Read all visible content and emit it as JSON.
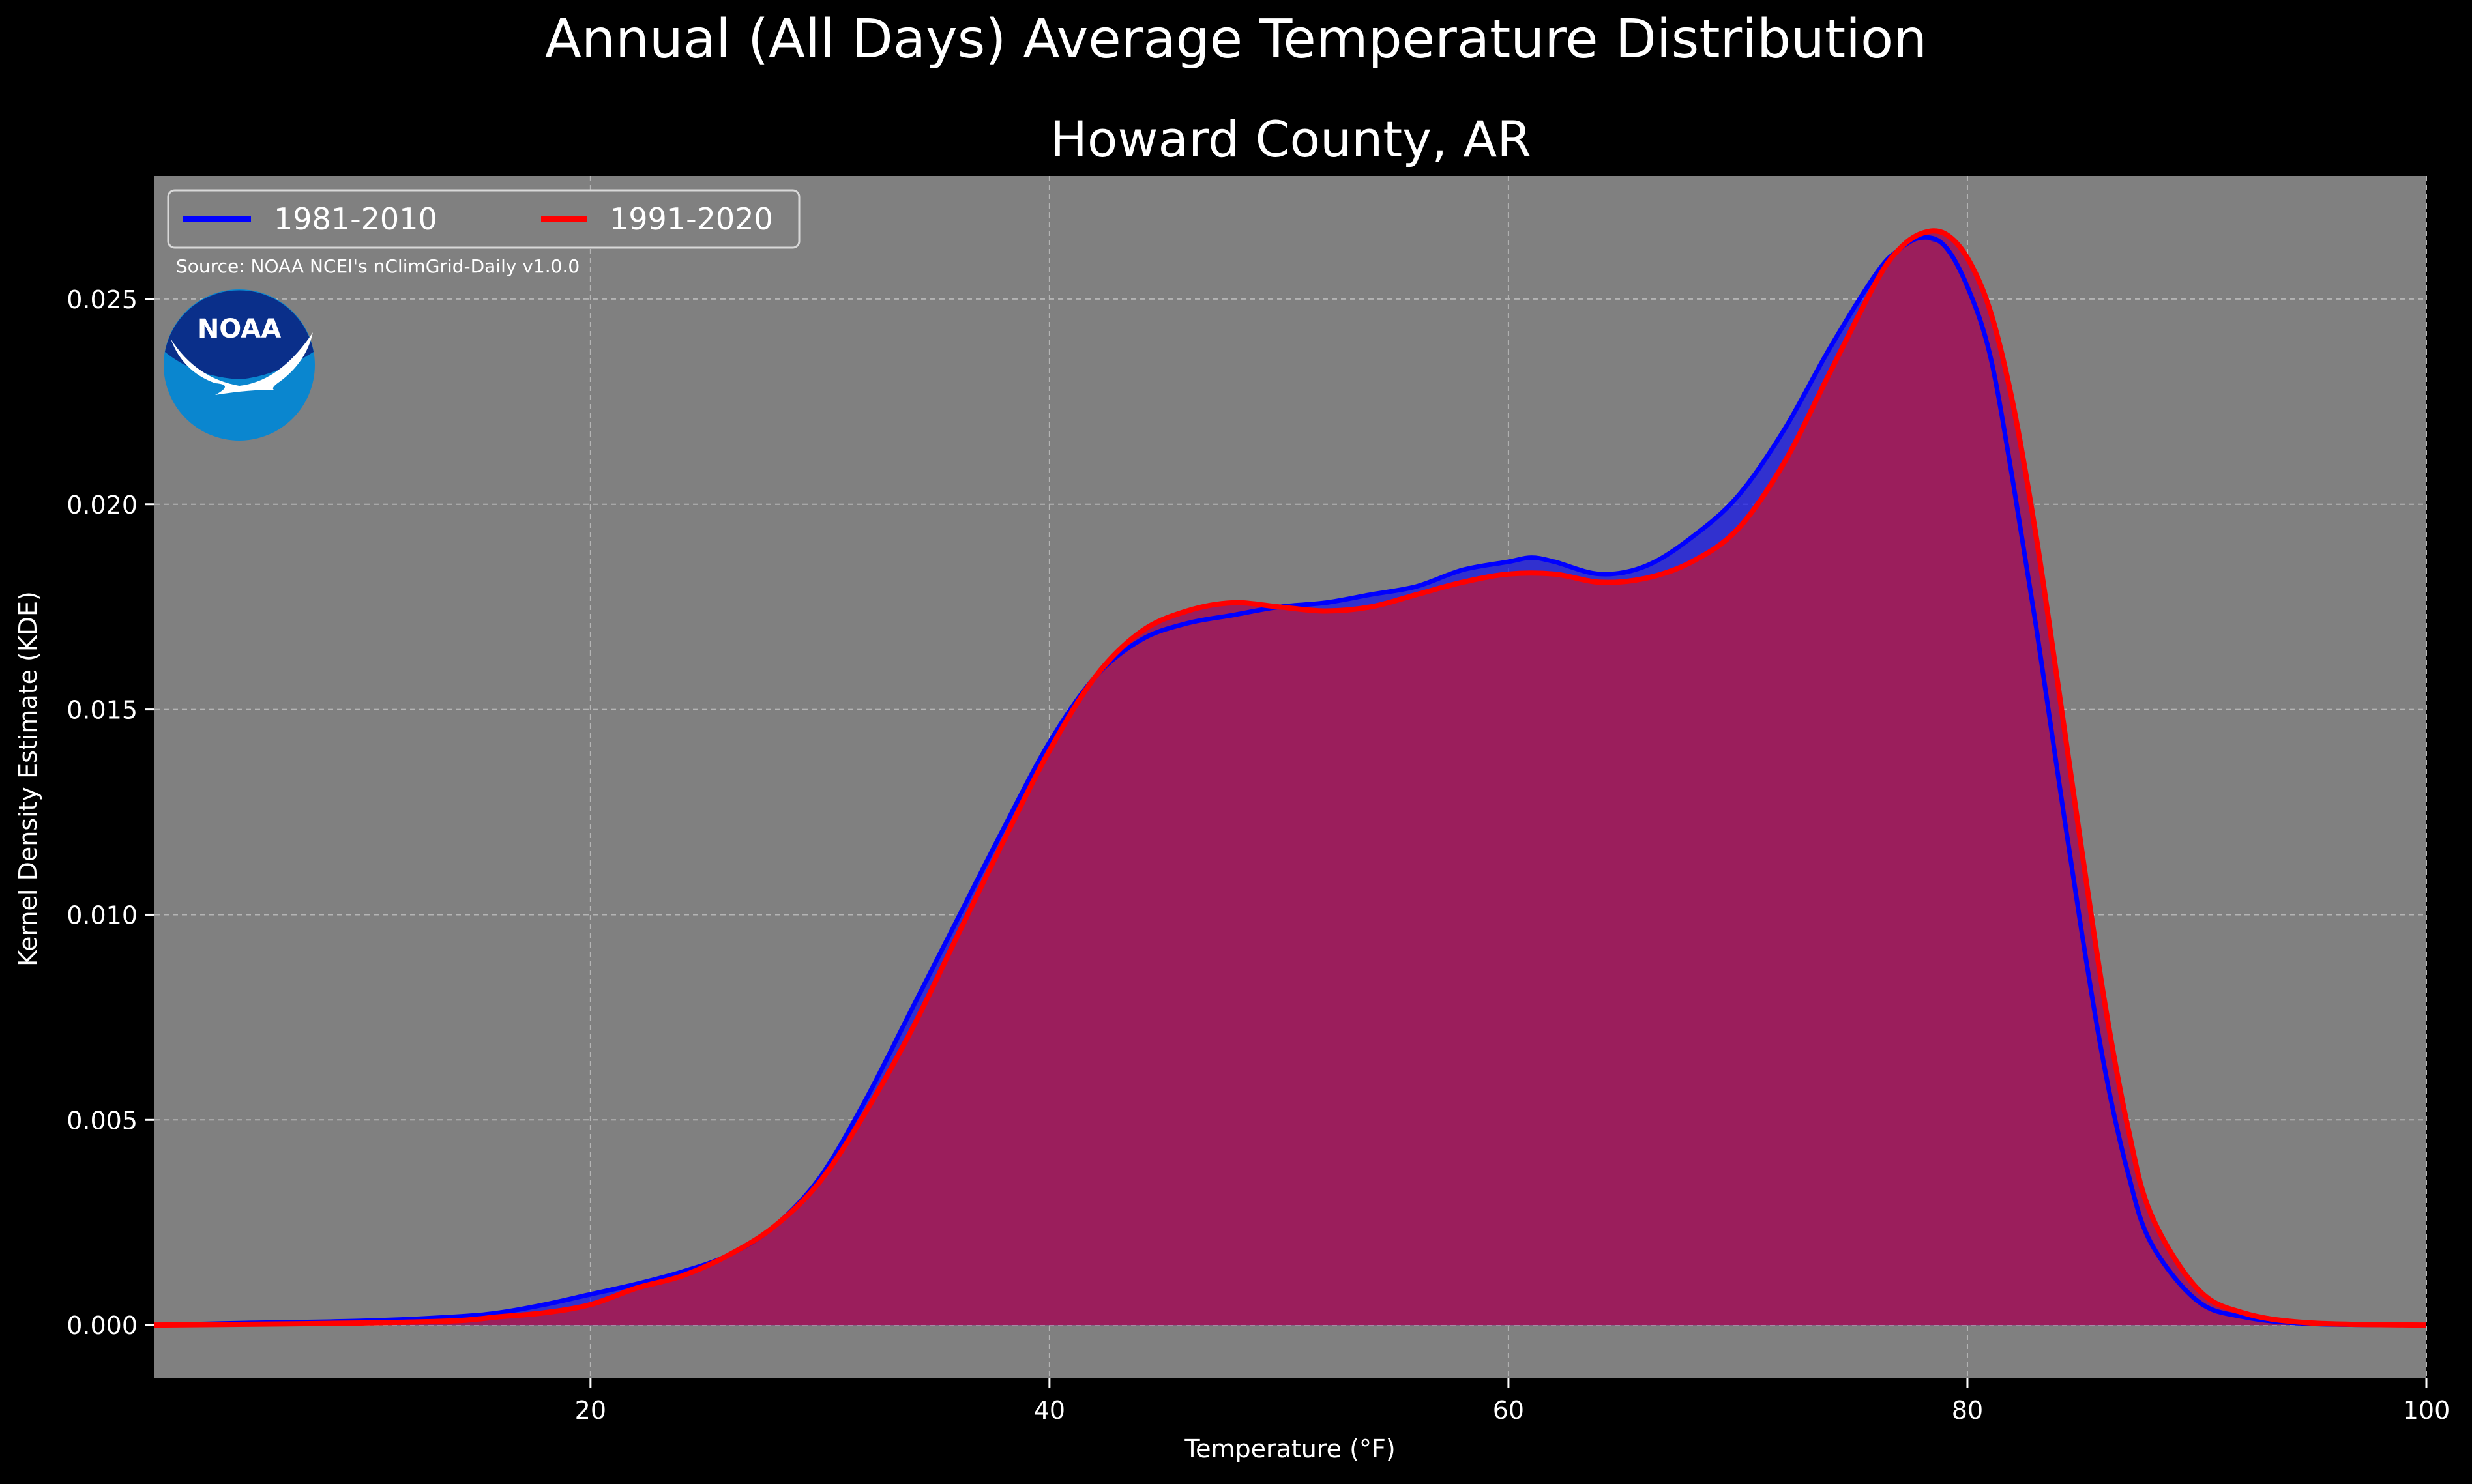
{
  "colors": {
    "background": "#000000",
    "plot_bg": "#808080",
    "series_1981": "#0000ff",
    "series_1991": "#ff0000",
    "fill_overlap": "#9b1e5c",
    "noaa_dark": "#0a2f8a",
    "noaa_light": "#0a86cf"
  },
  "source_note": "Source: NOAA NCEI's nClimGrid-Daily v1.0.0",
  "logo": {
    "icon": "noaa-logo",
    "text": "NOAA"
  },
  "chart_data": {
    "type": "area",
    "title": "Annual (All Days) Average Temperature Distribution",
    "subtitle": "Howard County, AR",
    "xlabel": "Temperature (°F)",
    "ylabel": "Kernel Density Estimate (KDE)",
    "xlim": [
      1,
      100
    ],
    "ylim": [
      -0.0013,
      0.028
    ],
    "xticks": [
      20,
      40,
      60,
      80,
      100
    ],
    "yticks": [
      0.0,
      0.005,
      0.01,
      0.015,
      0.02,
      0.025
    ],
    "ytick_labels": [
      "0.000",
      "0.005",
      "0.010",
      "0.015",
      "0.020",
      "0.025"
    ],
    "grid": true,
    "legend_position": "top-left",
    "series": [
      {
        "name": "1981-2010",
        "color": "#0000ff",
        "x": [
          1,
          5,
          10,
          14,
          16,
          18,
          20,
          22,
          24,
          26,
          28,
          30,
          32,
          34,
          36,
          38,
          40,
          42,
          44,
          46,
          48,
          50,
          52,
          54,
          56,
          58,
          60,
          61,
          62,
          64,
          66,
          68,
          70,
          72,
          74,
          76,
          77,
          78,
          79,
          80,
          81,
          82,
          83,
          84,
          85,
          86,
          87,
          88,
          90,
          92,
          95,
          100
        ],
        "y": [
          0.0,
          5e-05,
          0.0001,
          0.0002,
          0.0003,
          0.0005,
          0.00075,
          0.001,
          0.0013,
          0.0017,
          0.0024,
          0.0036,
          0.0055,
          0.0077,
          0.0099,
          0.0121,
          0.0142,
          0.0158,
          0.0167,
          0.0171,
          0.0173,
          0.0175,
          0.0176,
          0.0178,
          0.018,
          0.0184,
          0.0186,
          0.0187,
          0.0186,
          0.0183,
          0.0185,
          0.0192,
          0.0202,
          0.0218,
          0.0238,
          0.0256,
          0.0262,
          0.0265,
          0.0263,
          0.0253,
          0.0236,
          0.0205,
          0.017,
          0.0132,
          0.0095,
          0.0062,
          0.0037,
          0.002,
          0.0006,
          0.0002,
          3e-05,
          0.0
        ]
      },
      {
        "name": "1991-2020",
        "color": "#ff0000",
        "x": [
          1,
          5,
          10,
          14,
          16,
          18,
          20,
          22,
          24,
          26,
          28,
          30,
          32,
          34,
          36,
          38,
          40,
          42,
          44,
          46,
          48,
          50,
          52,
          54,
          56,
          58,
          60,
          62,
          64,
          66,
          68,
          70,
          72,
          74,
          76,
          77,
          78,
          79,
          80,
          81,
          82,
          83,
          84,
          85,
          86,
          87,
          88,
          90,
          92,
          95,
          100
        ],
        "y": [
          0.0,
          2e-05,
          5e-05,
          0.0001,
          0.0002,
          0.0003,
          0.0005,
          0.0009,
          0.0012,
          0.0017,
          0.0024,
          0.0035,
          0.0052,
          0.0072,
          0.0095,
          0.0118,
          0.014,
          0.0158,
          0.0169,
          0.0174,
          0.0176,
          0.0175,
          0.0174,
          0.0175,
          0.0178,
          0.0181,
          0.0183,
          0.0183,
          0.0181,
          0.0182,
          0.0186,
          0.0194,
          0.021,
          0.0232,
          0.0254,
          0.0262,
          0.0266,
          0.0266,
          0.026,
          0.0247,
          0.0224,
          0.0192,
          0.0154,
          0.0115,
          0.0078,
          0.0048,
          0.0027,
          0.0009,
          0.0003,
          5e-05,
          0.0
        ]
      }
    ]
  }
}
